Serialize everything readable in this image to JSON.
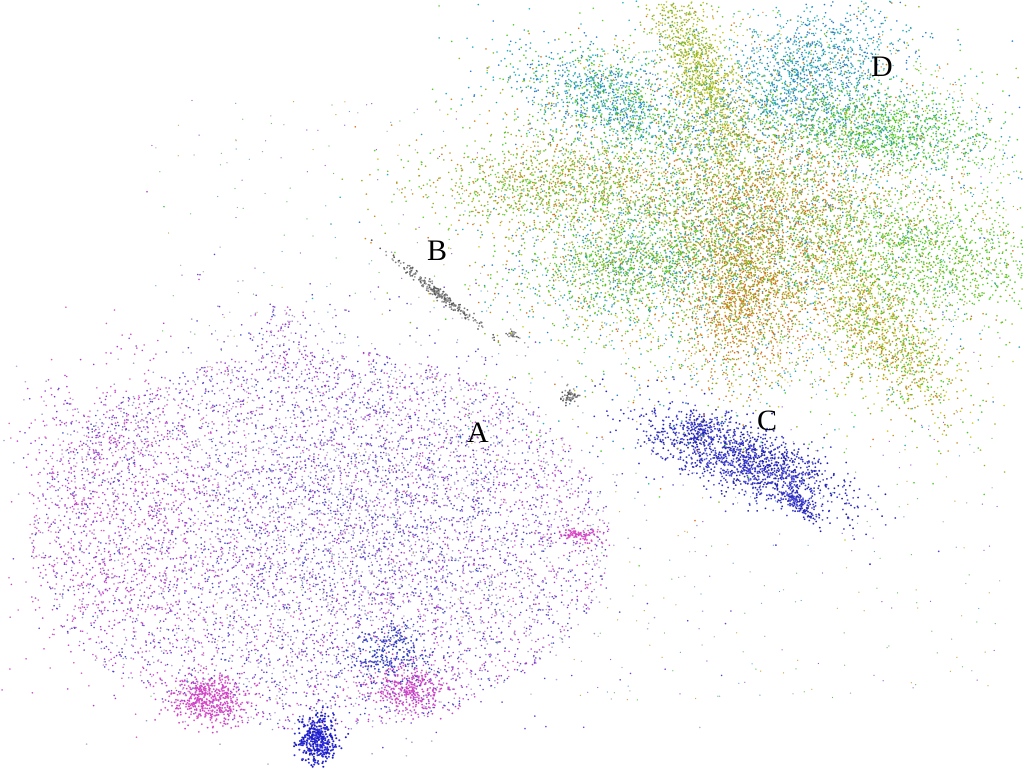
{
  "image": {
    "kind": "cluster-embedding-point-cloud",
    "background": "#ffffff"
  },
  "labels": {
    "a": "A",
    "b": "B",
    "c": "C",
    "d": "D"
  },
  "palettes": {
    "a": [
      "#b03cc8",
      "#cc44cc",
      "#8a3cd8",
      "#6a40c8",
      "#3c46c8",
      "#d060c0",
      "#9a9acb",
      "#c0a0d8"
    ],
    "b": [
      "#777777",
      "#999999",
      "#555555"
    ],
    "c": [
      "#1c1ca8",
      "#2a2ac0",
      "#3a3ad0",
      "#5050d8"
    ],
    "d": [
      "#46c81e",
      "#5ad22a",
      "#7fb82a",
      "#9aaa22",
      "#c8881c",
      "#d86a18",
      "#2aa0a8",
      "#2a78c8",
      "#20b0c0",
      "#c8c820"
    ],
    "noise": [
      "#5aa0e0",
      "#a050d0",
      "#60c060",
      "#d0a040",
      "#a0a0a0"
    ]
  }
}
